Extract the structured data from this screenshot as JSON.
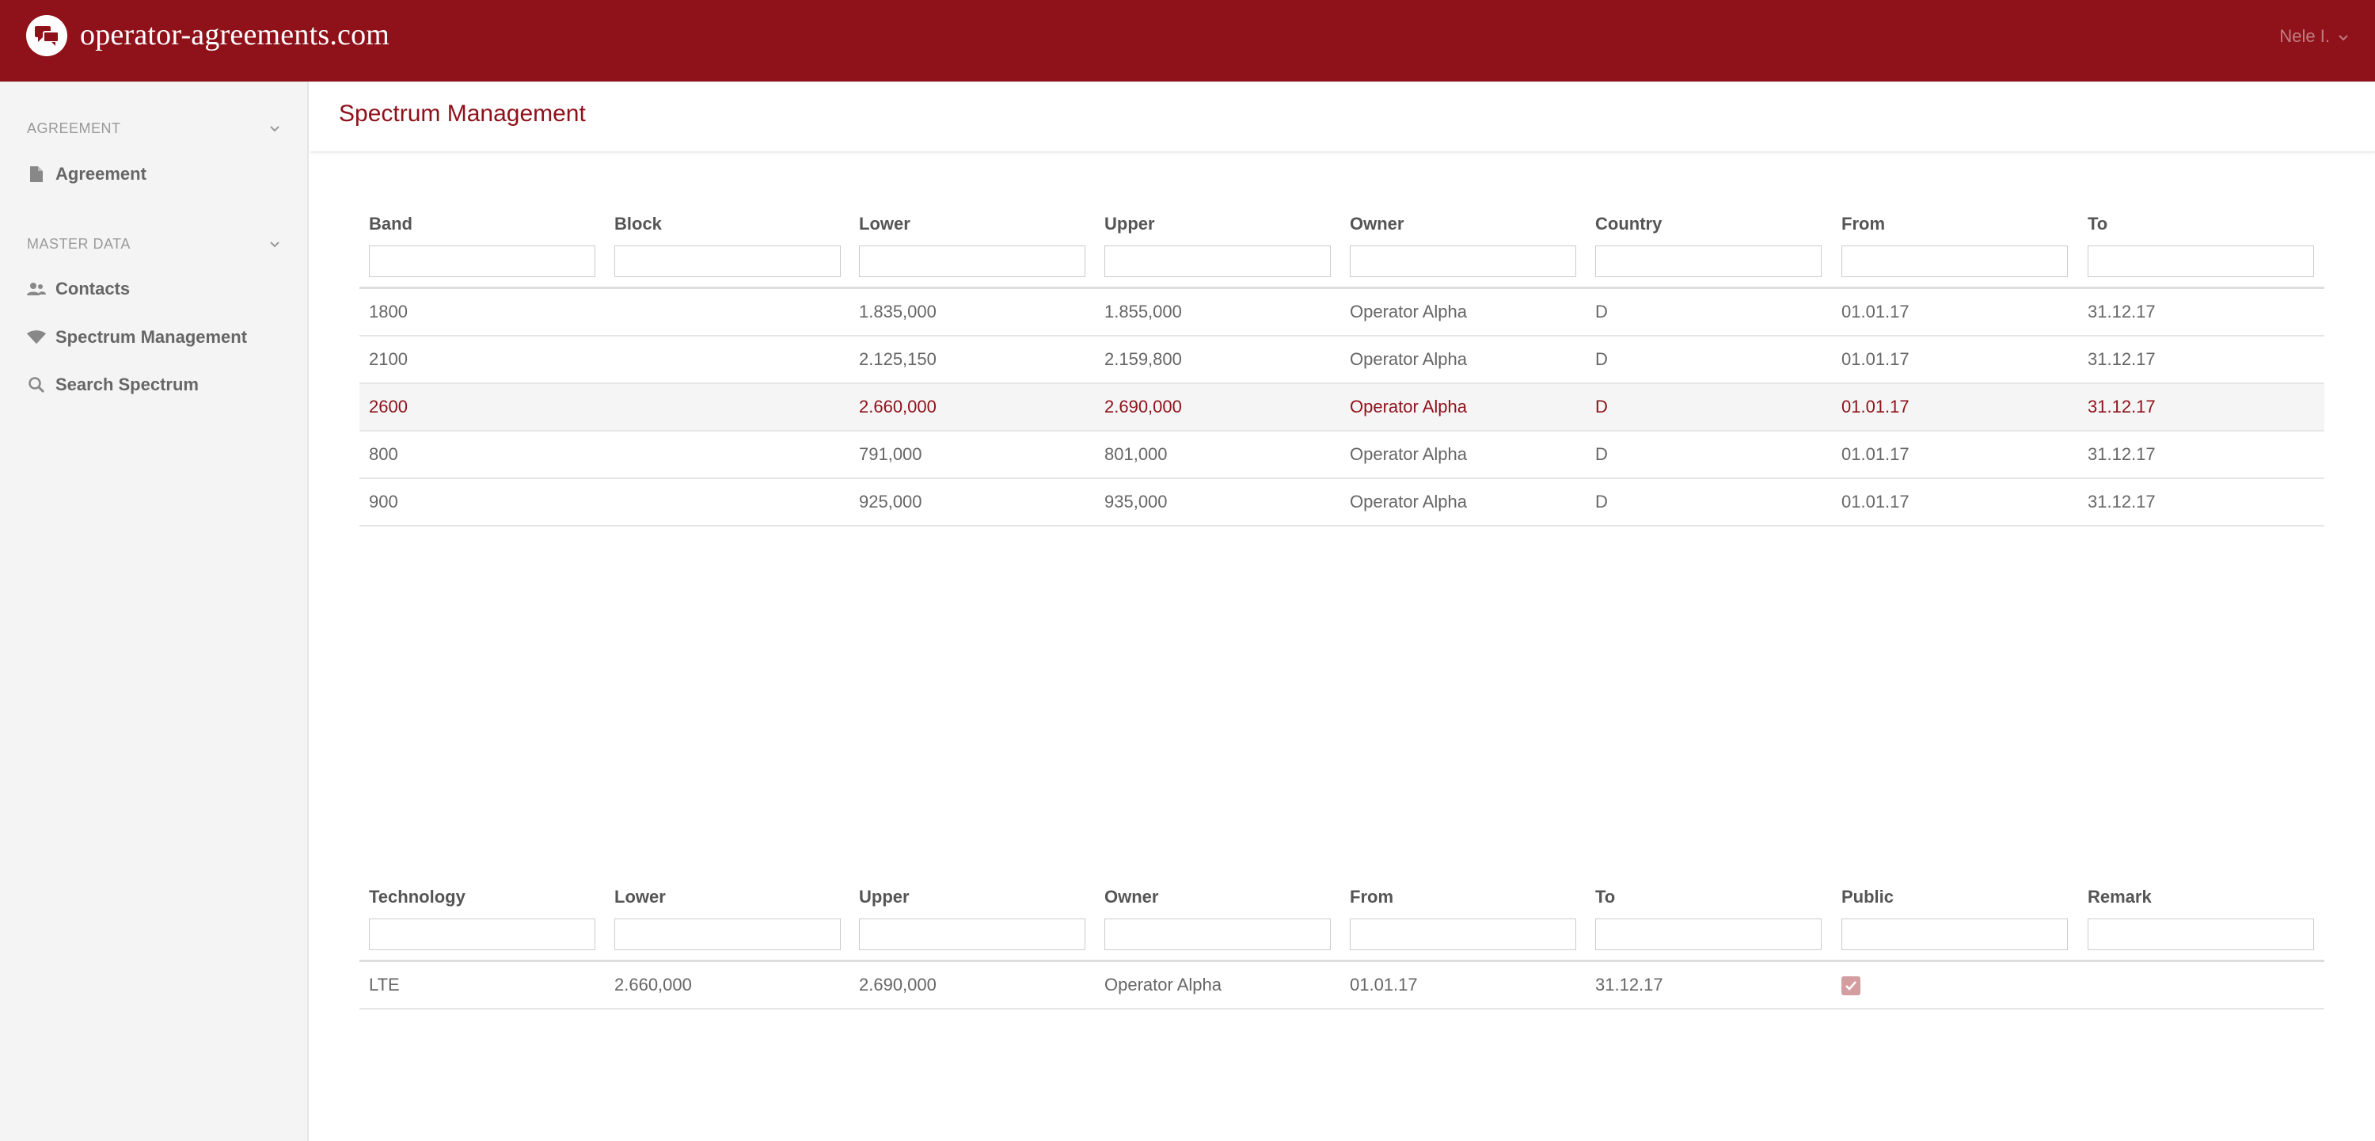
{
  "header": {
    "brand": "operator-agreements.com",
    "user": "Nele I."
  },
  "sidebar": {
    "sections": [
      {
        "label": "AGREEMENT",
        "items": [
          {
            "label": "Agreement",
            "icon": "file-icon"
          }
        ]
      },
      {
        "label": "MASTER DATA",
        "items": [
          {
            "label": "Contacts",
            "icon": "contacts-icon"
          },
          {
            "label": "Spectrum Management",
            "icon": "wifi-icon"
          },
          {
            "label": "Search Spectrum",
            "icon": "search-icon"
          }
        ]
      }
    ]
  },
  "page": {
    "title": "Spectrum Management"
  },
  "spectrum_table": {
    "columns": [
      "Band",
      "Block",
      "Lower",
      "Upper",
      "Owner",
      "Country",
      "From",
      "To"
    ],
    "rows": [
      [
        "1800",
        "",
        "1.835,000",
        "1.855,000",
        "Operator Alpha",
        "D",
        "01.01.17",
        "31.12.17"
      ],
      [
        "2100",
        "",
        "2.125,150",
        "2.159,800",
        "Operator Alpha",
        "D",
        "01.01.17",
        "31.12.17"
      ],
      [
        "2600",
        "",
        "2.660,000",
        "2.690,000",
        "Operator Alpha",
        "D",
        "01.01.17",
        "31.12.17"
      ],
      [
        "800",
        "",
        "791,000",
        "801,000",
        "Operator Alpha",
        "D",
        "01.01.17",
        "31.12.17"
      ],
      [
        "900",
        "",
        "925,000",
        "935,000",
        "Operator Alpha",
        "D",
        "01.01.17",
        "31.12.17"
      ]
    ],
    "selected_row": 2
  },
  "usage_table": {
    "columns": [
      "Technology",
      "Lower",
      "Upper",
      "Owner",
      "From",
      "To",
      "Public",
      "Remark"
    ],
    "rows": [
      {
        "technology": "LTE",
        "lower": "2.660,000",
        "upper": "2.690,000",
        "owner": "Operator Alpha",
        "from": "01.01.17",
        "to": "31.12.17",
        "public": true,
        "remark": ""
      }
    ]
  },
  "colors": {
    "brand": "#8f111a",
    "checkbox": "#d49ea1"
  }
}
